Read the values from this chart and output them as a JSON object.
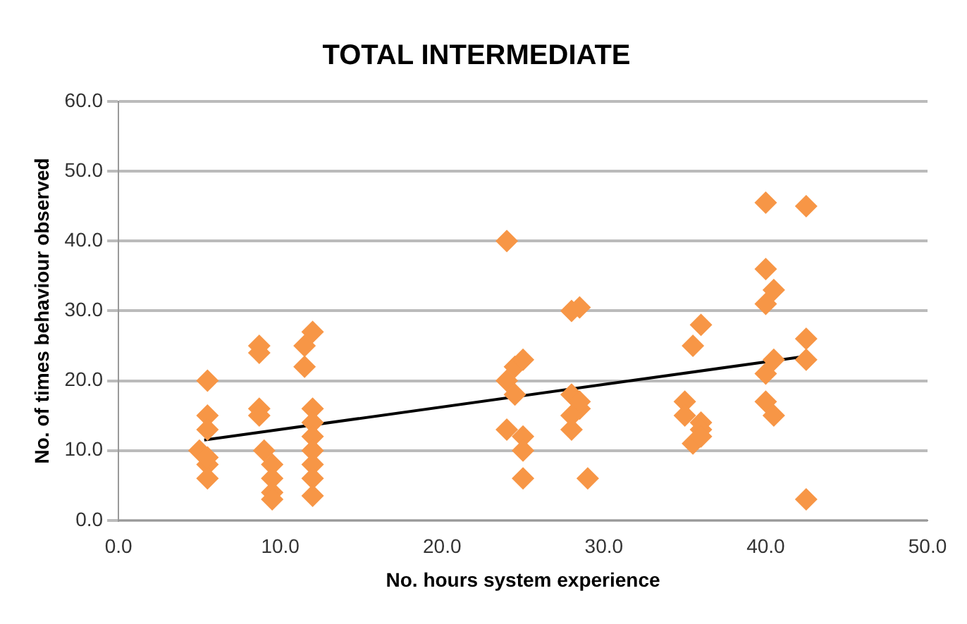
{
  "chart_data": {
    "type": "scatter",
    "title": "TOTAL INTERMEDIATE",
    "xlabel": "No. hours system experience",
    "ylabel": "No. of times behaviour observed",
    "xlim": [
      0,
      50
    ],
    "ylim": [
      0,
      60
    ],
    "xticks": [
      {
        "value": 0,
        "label": "0.0"
      },
      {
        "value": 10,
        "label": "10.0"
      },
      {
        "value": 20,
        "label": "20.0"
      },
      {
        "value": 30,
        "label": "30.0"
      },
      {
        "value": 40,
        "label": "40.0"
      },
      {
        "value": 50,
        "label": "50.0"
      }
    ],
    "yticks": [
      {
        "value": 0,
        "label": "0.0"
      },
      {
        "value": 10,
        "label": "10.0"
      },
      {
        "value": 20,
        "label": "20.0"
      },
      {
        "value": 30,
        "label": "30.0"
      },
      {
        "value": 40,
        "label": "40.0"
      },
      {
        "value": 50,
        "label": "50.0"
      },
      {
        "value": 60,
        "label": "60.0"
      }
    ],
    "grid": "y",
    "legend": false,
    "marker": "diamond",
    "series": [
      {
        "color": "#f79646",
        "x": [
          5.5,
          5.5,
          5.5,
          5,
          5.5,
          5.5,
          5.5,
          8.7,
          8.7,
          8.7,
          8.7,
          9,
          9.5,
          9.5,
          9.5,
          9.5,
          12,
          11.5,
          11.5,
          12,
          12,
          12,
          12,
          12,
          12,
          12,
          24,
          24.5,
          24,
          24.5,
          25,
          24,
          25,
          25,
          25,
          28,
          28.5,
          28,
          28.5,
          28,
          28,
          28.5,
          29,
          35.5,
          36,
          35,
          35,
          36,
          36,
          35.5,
          36,
          40,
          40,
          40.5,
          40,
          40.5,
          40,
          40,
          40.5,
          42.5,
          42.5,
          42.5,
          42.5
        ],
        "values": [
          20,
          15,
          13,
          10,
          8,
          6,
          9,
          25,
          24,
          16,
          15,
          10,
          8,
          6,
          4,
          3,
          27,
          25,
          22,
          16,
          14,
          12,
          10,
          8,
          6,
          3.5,
          40,
          22,
          20,
          18,
          23,
          13,
          12,
          10,
          6,
          30,
          30.5,
          18,
          16,
          15,
          13,
          17,
          6,
          25,
          28,
          17,
          15,
          14,
          13,
          11,
          12,
          45.5,
          36,
          33,
          31,
          23,
          21,
          17,
          15,
          45,
          26,
          23,
          3
        ]
      },
      {
        "type": "line",
        "color": "#000000",
        "x": [
          5.3,
          42.5
        ],
        "values": [
          11.5,
          23.5
        ],
        "marker": "none"
      }
    ]
  }
}
